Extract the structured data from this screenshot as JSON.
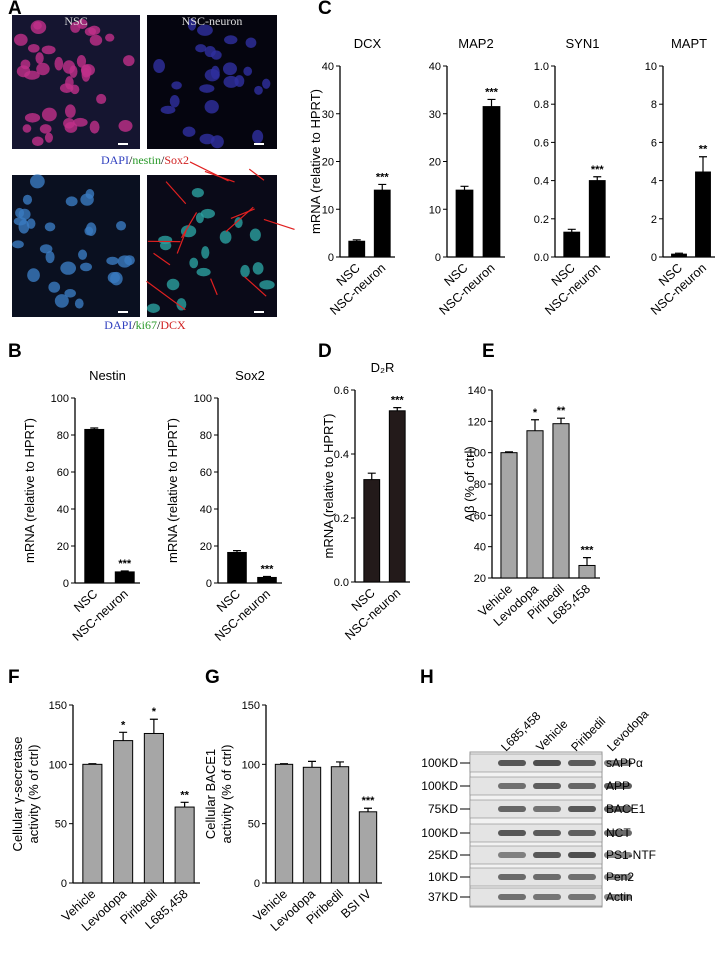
{
  "panel_labels": [
    "A",
    "B",
    "C",
    "D",
    "E",
    "F",
    "G",
    "H"
  ],
  "images": {
    "labels": [
      "NSC",
      "NSC-neuron"
    ],
    "legends": [
      [
        {
          "text": "DAPI",
          "color": "#2f3fbf"
        },
        {
          "text": "/",
          "color": "#000000"
        },
        {
          "text": "nestin",
          "color": "#2a9a2a"
        },
        {
          "text": "/",
          "color": "#000000"
        },
        {
          "text": "Sox2",
          "color": "#d02020"
        }
      ],
      [
        {
          "text": "DAPI",
          "color": "#2f3fbf"
        },
        {
          "text": "/",
          "color": "#000000"
        },
        {
          "text": "ki67",
          "color": "#2a9a2a"
        },
        {
          "text": "/",
          "color": "#000000"
        },
        {
          "text": "DCX",
          "color": "#d02020"
        }
      ]
    ]
  },
  "chart_data": [
    {
      "type": "bar",
      "title": "DCX",
      "ylabel": [
        "mRNA (relative to HPRT)"
      ],
      "categories": [
        "NSC",
        "NSC-neuron"
      ],
      "values": [
        3.3,
        14
      ],
      "errors": [
        0.3,
        1.2
      ],
      "annotations": [
        null,
        "***"
      ],
      "color": "#000000",
      "ylim": [
        0,
        40
      ],
      "yticks": [
        0,
        10,
        20,
        30,
        40
      ]
    },
    {
      "type": "bar",
      "title": "MAP2",
      "categories": [
        "NSC",
        "NSC-neuron"
      ],
      "values": [
        14,
        31.5
      ],
      "errors": [
        0.8,
        1.5
      ],
      "annotations": [
        null,
        "***"
      ],
      "color": "#000000",
      "ylim": [
        0,
        40
      ],
      "yticks": [
        0,
        10,
        20,
        30,
        40
      ]
    },
    {
      "type": "bar",
      "title": "SYN1",
      "categories": [
        "NSC",
        "NSC-neuron"
      ],
      "values": [
        0.13,
        0.4
      ],
      "errors": [
        0.015,
        0.02
      ],
      "annotations": [
        null,
        "***"
      ],
      "color": "#000000",
      "ylim": [
        0,
        1
      ],
      "yticks": [
        {
          "value": 0,
          "label": "0.0"
        },
        0.2,
        0.4,
        0.6,
        0.8,
        {
          "value": 1,
          "label": "1.0"
        }
      ]
    },
    {
      "type": "bar",
      "title": "MAPT",
      "categories": [
        "NSC",
        "NSC-neuron"
      ],
      "values": [
        0.15,
        4.45
      ],
      "errors": [
        0.05,
        0.8
      ],
      "annotations": [
        null,
        "**"
      ],
      "color": "#000000",
      "ylim": [
        0,
        10
      ],
      "yticks": [
        0,
        2,
        4,
        6,
        8,
        10
      ]
    },
    {
      "type": "bar",
      "title": "Nestin",
      "ylabel": [
        "mRNA (relative to HPRT)"
      ],
      "categories": [
        "NSC",
        "NSC-neuron"
      ],
      "values": [
        83,
        6
      ],
      "errors": [
        0.8,
        0.5
      ],
      "annotations": [
        null,
        "***"
      ],
      "color": "#000000",
      "ylim": [
        0,
        100
      ],
      "yticks": [
        0,
        20,
        40,
        60,
        80,
        100
      ]
    },
    {
      "type": "bar",
      "title": "Sox2",
      "ylabel": [
        "mRNA (relative to HPRT)"
      ],
      "categories": [
        "NSC",
        "NSC-neuron"
      ],
      "values": [
        16.5,
        3
      ],
      "errors": [
        1,
        0.5
      ],
      "annotations": [
        null,
        "***"
      ],
      "color": "#000000",
      "ylim": [
        0,
        100
      ],
      "yticks": [
        0,
        20,
        40,
        60,
        80,
        100
      ]
    },
    {
      "type": "bar",
      "title": "D₂R",
      "ylabel": [
        "mRNA (relative to HPRT)"
      ],
      "categories": [
        "NSC",
        "NSC-neuron"
      ],
      "values": [
        0.32,
        0.535
      ],
      "errors": [
        0.02,
        0.01
      ],
      "annotations": [
        null,
        "***"
      ],
      "color": "#231a1a",
      "ylim": [
        0,
        0.6
      ],
      "yticks": [
        {
          "value": 0,
          "label": "0.0"
        },
        0.2,
        0.4,
        0.6
      ]
    },
    {
      "type": "bar",
      "ylabel": [
        "Aβ (% of ctrl)"
      ],
      "categories": [
        "Vehicle",
        "Levodopa",
        "Piribedil",
        "L685,458"
      ],
      "values": [
        100,
        114,
        118.5,
        28
      ],
      "errors": [
        0.5,
        7,
        3.5,
        5
      ],
      "annotations": [
        null,
        "*",
        "**",
        "***"
      ],
      "color": "#a6a6a6",
      "ylim": [
        20,
        140
      ],
      "yticks": [
        20,
        40,
        60,
        80,
        100,
        120,
        140
      ]
    },
    {
      "type": "bar",
      "ylabel": [
        "Cellular γ-secretase",
        "activity (% of ctrl)"
      ],
      "categories": [
        "Vehicle",
        "Levodopa",
        "Piribedil",
        "L685,458"
      ],
      "values": [
        100,
        120,
        126,
        64
      ],
      "errors": [
        0.5,
        7,
        12,
        4
      ],
      "annotations": [
        null,
        "*",
        "*",
        "**"
      ],
      "color": "#a6a6a6",
      "ylim": [
        0,
        150
      ],
      "yticks": [
        0,
        50,
        100,
        150
      ]
    },
    {
      "type": "bar",
      "ylabel": [
        "Cellular BACE1",
        "activity (% of ctrl)"
      ],
      "categories": [
        "Vehicle",
        "Levodopa",
        "Piribedil",
        "BSI IV"
      ],
      "values": [
        100,
        97.5,
        98,
        60
      ],
      "errors": [
        0.5,
        5,
        4,
        3
      ],
      "annotations": [
        null,
        null,
        null,
        "***"
      ],
      "color": "#a6a6a6",
      "ylim": [
        0,
        150
      ],
      "yticks": [
        0,
        50,
        100,
        150
      ]
    }
  ],
  "blot": {
    "lanes": [
      "L685,458",
      "Vehicle",
      "Piribedil",
      "Levodopa"
    ],
    "markers": [
      "100KD",
      "100KD",
      "75KD",
      "100KD",
      "25KD",
      "10KD",
      "37KD"
    ],
    "proteins": [
      "sAPPα",
      "APP",
      "BACE1",
      "NCT",
      "PS1-NTF",
      "Pen2",
      "Actin"
    ]
  }
}
